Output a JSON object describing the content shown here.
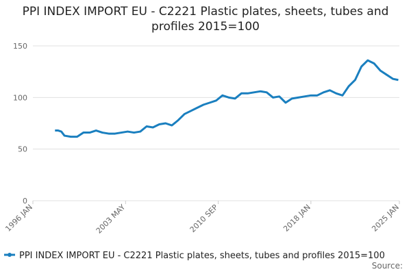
{
  "chart_data": {
    "type": "line",
    "title": "PPI INDEX IMPORT EU - C2221 Plastic plates, sheets, tubes and profiles 2015=100",
    "source": "Source:",
    "x": [
      "1997-10",
      "1998-01",
      "1998-04",
      "1998-07",
      "1999-01",
      "1999-07",
      "2000-01",
      "2000-07",
      "2001-01",
      "2001-07",
      "2002-01",
      "2002-07",
      "2003-01",
      "2003-07",
      "2004-01",
      "2004-07",
      "2005-01",
      "2005-07",
      "2006-01",
      "2006-07",
      "2007-01",
      "2007-07",
      "2008-01",
      "2008-07",
      "2009-01",
      "2009-07",
      "2010-01",
      "2010-07",
      "2011-01",
      "2011-07",
      "2012-01",
      "2012-07",
      "2013-01",
      "2013-07",
      "2014-01",
      "2014-07",
      "2015-01",
      "2015-07",
      "2016-01",
      "2016-07",
      "2017-01",
      "2017-07",
      "2018-01",
      "2018-07",
      "2019-01",
      "2019-07",
      "2020-01",
      "2020-07",
      "2021-01",
      "2021-07",
      "2022-01",
      "2022-07",
      "2023-01",
      "2023-07",
      "2024-01",
      "2024-07",
      "2024-12"
    ],
    "series": [
      {
        "name": "PPI INDEX IMPORT EU - C2221 Plastic plates, sheets, tubes and profiles 2015=100",
        "color": "#1a7fbf",
        "values": [
          68,
          68,
          67,
          63,
          62,
          62,
          66,
          66,
          68,
          66,
          65,
          65,
          66,
          67,
          66,
          67,
          72,
          71,
          74,
          75,
          73,
          78,
          84,
          87,
          90,
          93,
          95,
          97,
          102,
          100,
          99,
          104,
          104,
          105,
          106,
          105,
          100,
          101,
          95,
          99,
          100,
          101,
          102,
          102,
          105,
          107,
          104,
          102,
          111,
          117,
          130,
          136,
          133,
          126,
          122,
          118,
          117
        ]
      }
    ],
    "xlim": [
      "1996-01",
      "2025-01"
    ],
    "xticks": [
      {
        "value": "1996-01",
        "label": "1996 JAN"
      },
      {
        "value": "2003-05",
        "label": "2003 MAY"
      },
      {
        "value": "2010-09",
        "label": "2010 SEP"
      },
      {
        "value": "2018-01",
        "label": "2018 JAN"
      },
      {
        "value": "2025-01",
        "label": "2025 JAN"
      }
    ],
    "ylim": [
      0,
      150
    ],
    "yticks": [
      0,
      50,
      100,
      150
    ],
    "grid": true
  }
}
